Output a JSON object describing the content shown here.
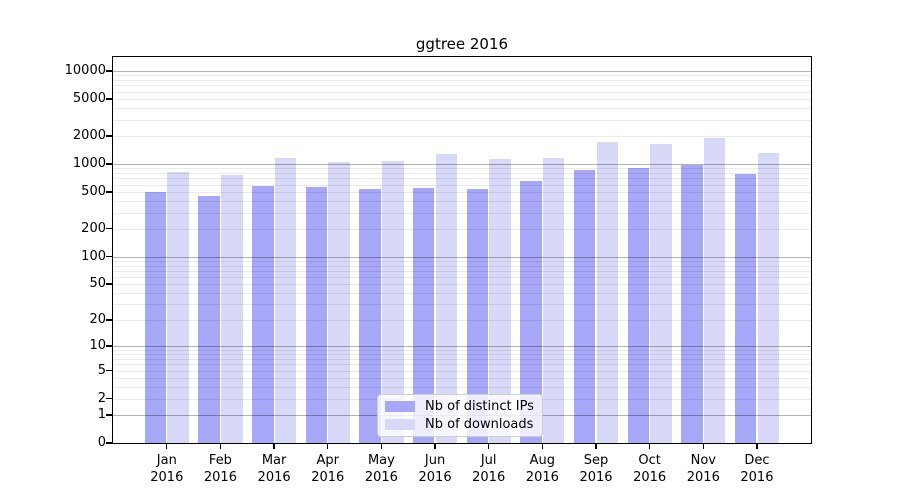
{
  "chart_data": {
    "type": "bar",
    "title": "ggtree 2016",
    "year_label": "2016",
    "months": [
      "Jan",
      "Feb",
      "Mar",
      "Apr",
      "May",
      "Jun",
      "Jul",
      "Aug",
      "Sep",
      "Oct",
      "Nov",
      "Dec"
    ],
    "series": [
      {
        "name": "Nb of distinct IPs",
        "color": "#a7a7f7",
        "values": [
          500,
          450,
          580,
          570,
          540,
          545,
          540,
          650,
          870,
          900,
          970,
          780
        ]
      },
      {
        "name": "Nb of downloads",
        "color": "#d8d8f8",
        "values": [
          820,
          760,
          1160,
          1050,
          1080,
          1290,
          1130,
          1160,
          1720,
          1640,
          1900,
          1310
        ]
      }
    ],
    "yticks": [
      0,
      1,
      2,
      5,
      10,
      20,
      50,
      100,
      200,
      500,
      1000,
      2000,
      5000,
      10000
    ],
    "ylim": [
      0,
      14000
    ],
    "yscale": "log1p",
    "grid": true,
    "legend_position": "lower center",
    "colors": {
      "major_gridline": "#b3b3b3",
      "minor_gridline": "#ebebeb",
      "axis": "#000000",
      "background": "#ffffff"
    }
  }
}
